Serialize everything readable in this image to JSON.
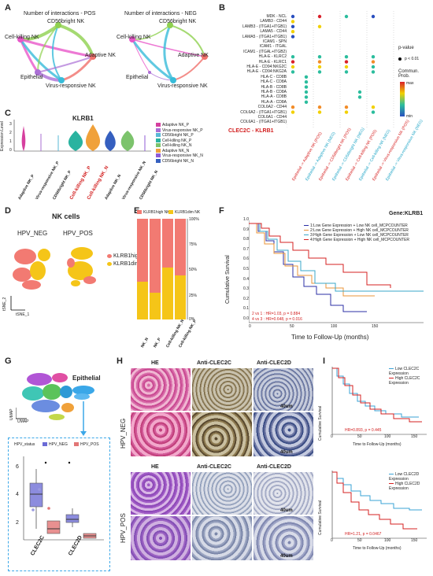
{
  "panels": [
    "A",
    "B",
    "C",
    "D",
    "E",
    "F",
    "G",
    "H",
    "I"
  ],
  "A": {
    "titles": [
      "Number of interactions - POS",
      "Number of interactions - NEG"
    ],
    "nodes": [
      "CD56bright NK",
      "Cell-killing NK",
      "Adaptive NK",
      "Epithelial",
      "Virus-responsive NK"
    ],
    "colors": {
      "cd56": "#8fd14f",
      "cellkill": "#e857c9",
      "adaptive": "#f0716c",
      "epithelial": "#ab6fd6",
      "virus": "#38bcd9"
    }
  },
  "B": {
    "pairs": [
      "MDK - NCL",
      "LAMB3 - CD44",
      "LAMB3 - (ITGA1+ITGB1)",
      "LAMA5 - CD44",
      "LAMA5 - (ITGA1+ITGB1)",
      "ICAM1 - SPN",
      "ICAM1 - ITGAL",
      "ICAM1 - (ITGAL+ITGB2)",
      "HLA-E - KLRC2",
      "HLA-E - KLRC1",
      "HLA-E - CD94:NKG2C",
      "HLA-E - CD94:NKG2A",
      "HLA-C - CD8B",
      "HLA-C - CD8A",
      "HLA-B - CD8B",
      "HLA-B - CD8A",
      "HLA-A - CD8B",
      "HLA-A - CD8A",
      "COL6A2 - CD44",
      "COL6A2 - (ITGA1+ITGB1)",
      "COL6A1 - CD44",
      "COL6A1 - (ITGA1+ITGB1)"
    ],
    "highlight": "CLEC2C - KLRB1",
    "columns": [
      "Epithelial -> Adaptive NK (POS)",
      "Epithelial -> Adaptive NK (NEG)",
      "Epithelial -> CD56bright NK (POS)",
      "Epithelial -> CD56bright NK (NEG)",
      "Epithelial -> Cell-killing NK (POS)",
      "Epithelial -> Cell-killing NK (NEG)",
      "Epithelial -> Virus-responsive NK (POS)",
      "Epithelial -> Virus-responsive NK (NEG)"
    ],
    "legend_title": "p-value",
    "legend_p": "p < 0.01",
    "legend_prob": "Commun. Prob.",
    "legend_max": "max",
    "legend_min": "min"
  },
  "C": {
    "title": "KLRB1",
    "ylabel": "Expression Level",
    "yticks": [
      "3",
      "2",
      "1",
      "0"
    ],
    "groups": [
      "Adaptive NK_P",
      "Virus-responsive NK_P",
      "CD56bright NK_P",
      "Cell-killing NK_P",
      "Cell-killing NK_N",
      "Adaptive NK_N",
      "Virus-responsive NK_N",
      "CD56bright NK_N"
    ],
    "legend": [
      "Adaptive NK_P",
      "Virus-responsive NK_P",
      "CD56bright NK_P",
      "Cell-killing NK_P",
      "Cell-killing NK_N",
      "Adaptive NK_N",
      "Virus-responsive NK_N",
      "CD56bright NK_N"
    ],
    "legend_colors": [
      "#d6409f",
      "#a96fd3",
      "#5ab8d6",
      "#2ab3a0",
      "#7cc36c",
      "#f0a13a",
      "#8f5bd6",
      "#355fbf"
    ]
  },
  "D": {
    "title": "NK cells",
    "groups": [
      "HPV_NEG",
      "HPV_POS"
    ],
    "legend": [
      "KLRB1high",
      "KLRB1dim"
    ],
    "colors": [
      "#f27a72",
      "#f5c518"
    ],
    "xlabel": "tSNE_1",
    "ylabel": "tSNE_2"
  },
  "E": {
    "legend": [
      "KLRB1high NK",
      "KLRB1dim NK"
    ],
    "yticks": [
      "100%",
      "75%",
      "50%",
      "25%",
      "0%"
    ],
    "categories": [
      "NK_N",
      "NK_P",
      "Cell-killing NK_N",
      "Cell-killing NK_P"
    ]
  },
  "F": {
    "gene": "Gene:KLRB1",
    "ylabel": "Cumulative Survival",
    "xlabel": "Time to Follow-Up (months)",
    "yticks": [
      "1.0",
      "0.9",
      "0.8",
      "0.7",
      "0.6",
      "0.5",
      "0.4",
      "0.3",
      "0.2",
      "0.1",
      "0.0"
    ],
    "xticks": [
      "0",
      "50",
      "100",
      "150"
    ],
    "legend": [
      "1:Low Gene Expression + Low NK cell_MCPCOUNTER",
      "2:Low Gene Expression + High NK cell_MCPCOUNTER",
      "3:High Gene Expression + Low NK cell_MCPCOUNTER",
      "4:High Gene Expression + High NK cell_MCPCOUNTER"
    ],
    "colors": [
      "#2b2fa5",
      "#e8943a",
      "#3aa7c9",
      "#d62020"
    ],
    "stats": [
      "2 vs 1 : HR=1.03, p = 0.884",
      "4 vs 3 : HR=0.648, p = 0.016"
    ]
  },
  "G": {
    "umap_x": "UMAP",
    "umap_y": "UMAP",
    "epithelial": "Epithelial",
    "status_label": "HPV_status",
    "status": [
      "HPV_NEG",
      "HPV_POS"
    ],
    "status_colors": [
      "#6b6bd6",
      "#e27676"
    ],
    "yticks": [
      "6",
      "4",
      "2"
    ],
    "genes": [
      "CLEC2C",
      "CLEC2D"
    ]
  },
  "H": {
    "headers": [
      "HE",
      "Anti-CLEC2C",
      "Anti-CLEC2D"
    ],
    "rows": [
      "HPV_NEG",
      "HPV_POS"
    ],
    "scale": "40um"
  },
  "I": {
    "ylabel": "Cumulative Survival",
    "xlabel": "Time to Follow-Up (months)",
    "xticks": [
      "0",
      "50",
      "100",
      "150"
    ],
    "top_legend": [
      "Low CLEC2C Expression",
      "High CLEC2C Expression"
    ],
    "bottom_legend": [
      "Low CLEC2D Expression",
      "High CLEC2D Expression"
    ],
    "top_stat": "HR=0.893, p = 0.445",
    "bottom_stat": "HR=1.21, p = 0.0467",
    "colors": [
      "#3aa3d6",
      "#d62020"
    ]
  }
}
